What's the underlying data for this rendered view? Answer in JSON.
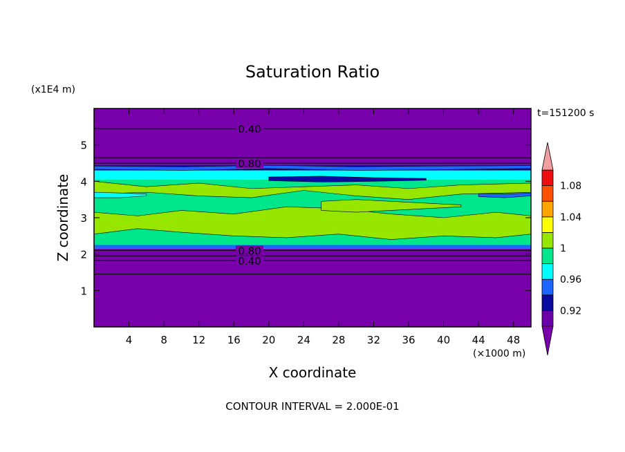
{
  "chart_data": {
    "type": "heatmap",
    "title": "Saturation Ratio",
    "xlabel": "X coordinate",
    "ylabel": "Z coordinate",
    "x_unit_label": "(×1000 m)",
    "y_unit_label": "(x1E4 m)",
    "time_label": "t=151200 s",
    "footer": "CONTOUR INTERVAL = 2.000E-01",
    "xlim": [
      0,
      50
    ],
    "ylim": [
      0,
      6
    ],
    "x_ticks": [
      "4",
      "8",
      "12",
      "16",
      "20",
      "24",
      "28",
      "32",
      "36",
      "40",
      "44",
      "48"
    ],
    "x_tick_values": [
      4,
      8,
      12,
      16,
      20,
      24,
      28,
      32,
      36,
      40,
      44,
      48
    ],
    "y_ticks": [
      "1",
      "2",
      "3",
      "4",
      "5"
    ],
    "y_tick_values": [
      1,
      2,
      3,
      4,
      5
    ],
    "contour_lines": [
      {
        "z": 5.45,
        "label": "0.40"
      },
      {
        "z": 4.65,
        "label": ""
      },
      {
        "z": 4.5,
        "label": "0.80"
      },
      {
        "z": 2.1,
        "label": "0.80"
      },
      {
        "z": 1.95,
        "label": ""
      },
      {
        "z": 1.82,
        "label": "0.40"
      },
      {
        "z": 1.45,
        "label": ""
      }
    ],
    "colorbar": {
      "levels": [
        0.9,
        0.92,
        0.94,
        0.96,
        0.98,
        1.0,
        1.02,
        1.04,
        1.06,
        1.08,
        1.1
      ],
      "labels": [
        "0.92",
        "0.96",
        "1",
        "1.04",
        "1.08"
      ],
      "label_values": [
        0.92,
        0.96,
        1.0,
        1.04,
        1.08
      ],
      "colors": [
        "#6a00a8",
        "#0a0aa0",
        "#1e64ff",
        "#00ffff",
        "#00e68c",
        "#96e600",
        "#ffff00",
        "#ffa500",
        "#ff5000",
        "#ee1010"
      ],
      "under_color": "#7800aa",
      "over_color": "#f0a0a0"
    },
    "field_bands": [
      {
        "z0": 0.0,
        "z1": 2.15,
        "color": "#7800aa"
      },
      {
        "z0": 2.15,
        "z1": 2.25,
        "color": "#1e64ff"
      },
      {
        "z0": 2.25,
        "z1": 4.05,
        "color": "#00e68c"
      },
      {
        "z0": 4.05,
        "z1": 4.3,
        "color": "#00ffff"
      },
      {
        "z0": 4.3,
        "z1": 4.45,
        "color": "#0a0aa0"
      },
      {
        "z0": 4.45,
        "z1": 6.0,
        "color": "#7800aa"
      }
    ],
    "field_patches": [
      {
        "x": [
          0,
          6,
          12,
          18,
          24,
          30,
          36,
          42,
          50
        ],
        "z_bottom": [
          3.65,
          3.7,
          3.6,
          3.55,
          3.75,
          3.6,
          3.5,
          3.65,
          3.7
        ],
        "z_top": [
          4.0,
          3.85,
          3.95,
          3.8,
          3.85,
          3.9,
          3.8,
          3.9,
          3.95
        ],
        "color": "#96e600"
      },
      {
        "x": [
          0,
          5,
          10,
          16,
          22,
          28,
          34,
          40,
          46,
          50
        ],
        "z_bottom": [
          2.55,
          2.7,
          2.6,
          2.5,
          2.45,
          2.55,
          2.4,
          2.5,
          2.45,
          2.55
        ],
        "z_top": [
          3.15,
          3.05,
          3.2,
          3.1,
          3.3,
          3.25,
          3.1,
          3.0,
          3.15,
          3.05
        ],
        "color": "#96e600"
      },
      {
        "x": [
          26,
          30,
          34,
          38,
          42
        ],
        "z_bottom": [
          3.2,
          3.15,
          3.2,
          3.25,
          3.3
        ],
        "z_top": [
          3.45,
          3.5,
          3.45,
          3.4,
          3.35
        ],
        "color": "#96e600"
      },
      {
        "x": [
          0,
          3,
          6
        ],
        "z_bottom": [
          3.55,
          3.55,
          3.6
        ],
        "z_top": [
          3.7,
          3.68,
          3.65
        ],
        "color": "#00ffff"
      },
      {
        "x": [
          20,
          26,
          32,
          38
        ],
        "z_bottom": [
          4.02,
          3.98,
          4.0,
          4.03
        ],
        "z_top": [
          4.12,
          4.14,
          4.1,
          4.08
        ],
        "color": "#0a0aa0"
      },
      {
        "x": [
          0,
          10,
          20,
          30,
          40,
          50
        ],
        "z_bottom": [
          4.33,
          4.3,
          4.35,
          4.3,
          4.32,
          4.35
        ],
        "z_top": [
          4.42,
          4.4,
          4.44,
          4.4,
          4.42,
          4.43
        ],
        "color": "#1e64ff"
      },
      {
        "x": [
          44,
          47,
          50
        ],
        "z_bottom": [
          3.58,
          3.55,
          3.6
        ],
        "z_top": [
          3.66,
          3.65,
          3.68
        ],
        "color": "#1e64ff"
      }
    ]
  }
}
